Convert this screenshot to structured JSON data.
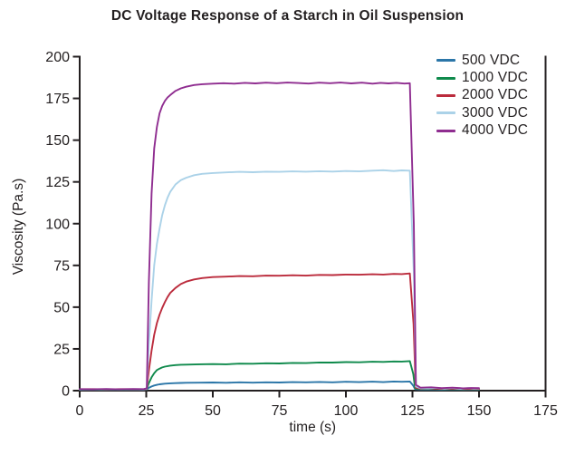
{
  "chart_data": {
    "type": "line",
    "title": "DC Voltage Response of a Starch in Oil Suspension",
    "xlabel": "time (s)",
    "ylabel": "Viscosity (Pa.s)",
    "xlim": [
      0,
      175
    ],
    "ylim": [
      0,
      200
    ],
    "xticks": [
      0,
      25,
      50,
      75,
      100,
      125,
      150,
      175
    ],
    "yticks": [
      0,
      25,
      50,
      75,
      100,
      125,
      150,
      175,
      200
    ],
    "grid": false,
    "legend_position": "upper-right-inside",
    "axis_color": "#231f20",
    "background_color": "#ffffff",
    "step_on_time_s": 25,
    "step_off_time_s": 125,
    "series": [
      {
        "name": "500 VDC",
        "color": "#2b76a8",
        "plateau_viscosity": 5,
        "points": [
          [
            0,
            0.6
          ],
          [
            4,
            0.7
          ],
          [
            8,
            0.5
          ],
          [
            12,
            0.7
          ],
          [
            16,
            0.6
          ],
          [
            20,
            0.7
          ],
          [
            24,
            0.6
          ],
          [
            25.2,
            0.7
          ],
          [
            26,
            1.7
          ],
          [
            27,
            2.5
          ],
          [
            28,
            3.1
          ],
          [
            29,
            3.5
          ],
          [
            30,
            3.8
          ],
          [
            32,
            4.2
          ],
          [
            34,
            4.4
          ],
          [
            36,
            4.5
          ],
          [
            38,
            4.6
          ],
          [
            40,
            4.7
          ],
          [
            45,
            4.8
          ],
          [
            50,
            4.9
          ],
          [
            55,
            4.7
          ],
          [
            60,
            5.0
          ],
          [
            65,
            4.8
          ],
          [
            70,
            5.0
          ],
          [
            75,
            4.9
          ],
          [
            80,
            5.1
          ],
          [
            85,
            5.0
          ],
          [
            90,
            5.2
          ],
          [
            95,
            5.0
          ],
          [
            100,
            5.3
          ],
          [
            105,
            5.1
          ],
          [
            110,
            5.4
          ],
          [
            114,
            5.1
          ],
          [
            118,
            5.5
          ],
          [
            121,
            5.3
          ],
          [
            124,
            5.5
          ],
          [
            125.3,
            3.0
          ],
          [
            126,
            0.9
          ],
          [
            128,
            0.7
          ],
          [
            132,
            0.8
          ],
          [
            136,
            0.6
          ],
          [
            140,
            0.8
          ],
          [
            144,
            0.6
          ],
          [
            147,
            0.7
          ],
          [
            150,
            0.6
          ]
        ]
      },
      {
        "name": "1000 VDC",
        "color": "#0f8a4c",
        "plateau_viscosity": 17,
        "points": [
          [
            0,
            0.7
          ],
          [
            4,
            0.8
          ],
          [
            8,
            0.6
          ],
          [
            12,
            0.8
          ],
          [
            16,
            0.6
          ],
          [
            20,
            0.8
          ],
          [
            24,
            0.7
          ],
          [
            25.2,
            0.9
          ],
          [
            26,
            4.5
          ],
          [
            27,
            8.0
          ],
          [
            28,
            10.5
          ],
          [
            29,
            12.3
          ],
          [
            30,
            13.2
          ],
          [
            31,
            13.9
          ],
          [
            32,
            14.4
          ],
          [
            34,
            15.0
          ],
          [
            36,
            15.3
          ],
          [
            38,
            15.5
          ],
          [
            40,
            15.6
          ],
          [
            45,
            15.8
          ],
          [
            50,
            15.9
          ],
          [
            55,
            15.8
          ],
          [
            60,
            16.2
          ],
          [
            65,
            16.1
          ],
          [
            70,
            16.4
          ],
          [
            75,
            16.3
          ],
          [
            80,
            16.6
          ],
          [
            85,
            16.5
          ],
          [
            90,
            16.9
          ],
          [
            95,
            16.8
          ],
          [
            100,
            17.1
          ],
          [
            105,
            17.0
          ],
          [
            110,
            17.3
          ],
          [
            114,
            17.2
          ],
          [
            118,
            17.5
          ],
          [
            121,
            17.4
          ],
          [
            124,
            17.7
          ],
          [
            125.3,
            10
          ],
          [
            126,
            1.3
          ],
          [
            128,
            1.0
          ],
          [
            132,
            1.1
          ],
          [
            136,
            0.9
          ],
          [
            140,
            1.0
          ],
          [
            144,
            0.8
          ],
          [
            147,
            0.9
          ],
          [
            150,
            0.8
          ]
        ]
      },
      {
        "name": "2000 VDC",
        "color": "#bb2b3c",
        "plateau_viscosity": 69,
        "points": [
          [
            0,
            0.8
          ],
          [
            5,
            0.9
          ],
          [
            10,
            0.7
          ],
          [
            15,
            0.9
          ],
          [
            20,
            0.8
          ],
          [
            24,
            0.8
          ],
          [
            25.2,
            1.0
          ],
          [
            26,
            12
          ],
          [
            27,
            24
          ],
          [
            28,
            33.5
          ],
          [
            29,
            40.5
          ],
          [
            30,
            45.5
          ],
          [
            31,
            49.5
          ],
          [
            32,
            53
          ],
          [
            33,
            56
          ],
          [
            34,
            58.5
          ],
          [
            36,
            61.5
          ],
          [
            38,
            63.8
          ],
          [
            40,
            65.3
          ],
          [
            43,
            66.6
          ],
          [
            46,
            67.4
          ],
          [
            50,
            68.0
          ],
          [
            55,
            68.3
          ],
          [
            60,
            68.6
          ],
          [
            65,
            68.5
          ],
          [
            70,
            68.9
          ],
          [
            75,
            68.8
          ],
          [
            80,
            69.1
          ],
          [
            85,
            68.9
          ],
          [
            90,
            69.3
          ],
          [
            95,
            69.2
          ],
          [
            100,
            69.5
          ],
          [
            105,
            69.4
          ],
          [
            110,
            69.7
          ],
          [
            114,
            69.5
          ],
          [
            118,
            69.9
          ],
          [
            121,
            69.8
          ],
          [
            124,
            70.2
          ],
          [
            125.4,
            40
          ],
          [
            126.2,
            1.8
          ],
          [
            128,
            1.2
          ],
          [
            132,
            1.3
          ],
          [
            136,
            1.1
          ],
          [
            140,
            1.2
          ],
          [
            144,
            1.0
          ],
          [
            147,
            1.1
          ],
          [
            150,
            1.0
          ]
        ]
      },
      {
        "name": "3000 VDC",
        "color": "#abd2e8",
        "plateau_viscosity": 131,
        "points": [
          [
            0,
            0.8
          ],
          [
            5,
            0.7
          ],
          [
            10,
            0.9
          ],
          [
            15,
            0.7
          ],
          [
            20,
            0.9
          ],
          [
            24,
            0.8
          ],
          [
            25.2,
            1.2
          ],
          [
            26,
            28
          ],
          [
            27,
            54
          ],
          [
            28,
            75
          ],
          [
            29,
            88
          ],
          [
            30,
            97
          ],
          [
            31,
            105
          ],
          [
            32,
            111
          ],
          [
            33,
            115.5
          ],
          [
            34,
            119
          ],
          [
            36,
            123.5
          ],
          [
            38,
            126
          ],
          [
            40,
            127.5
          ],
          [
            43,
            129.0
          ],
          [
            46,
            129.8
          ],
          [
            50,
            130.3
          ],
          [
            55,
            130.7
          ],
          [
            60,
            131.0
          ],
          [
            65,
            130.8
          ],
          [
            70,
            131.1
          ],
          [
            75,
            131.0
          ],
          [
            80,
            131.3
          ],
          [
            85,
            131.1
          ],
          [
            90,
            131.4
          ],
          [
            95,
            131.2
          ],
          [
            100,
            131.5
          ],
          [
            105,
            131.3
          ],
          [
            110,
            131.7
          ],
          [
            114,
            132.0
          ],
          [
            118,
            131.5
          ],
          [
            121,
            131.9
          ],
          [
            124,
            131.7
          ],
          [
            125.5,
            70
          ],
          [
            126.3,
            2.5
          ],
          [
            128,
            1.4
          ],
          [
            131,
            1.3
          ],
          [
            134,
            1.7
          ],
          [
            137,
            1.2
          ],
          [
            140,
            1.6
          ],
          [
            143,
            1.1
          ],
          [
            146,
            1.5
          ],
          [
            148,
            1.2
          ],
          [
            150,
            1.3
          ]
        ]
      },
      {
        "name": "4000 VDC",
        "color": "#8f2d90",
        "plateau_viscosity": 184,
        "points": [
          [
            0,
            0.9
          ],
          [
            5,
            0.8
          ],
          [
            10,
            1.0
          ],
          [
            15,
            0.8
          ],
          [
            20,
            1.0
          ],
          [
            24,
            0.9
          ],
          [
            25.2,
            1.4
          ],
          [
            26,
            65
          ],
          [
            27,
            118
          ],
          [
            28,
            145
          ],
          [
            29,
            158
          ],
          [
            30,
            166
          ],
          [
            31,
            170.5
          ],
          [
            32,
            173.5
          ],
          [
            33,
            175.5
          ],
          [
            34,
            177
          ],
          [
            36,
            179.5
          ],
          [
            38,
            181
          ],
          [
            40,
            182
          ],
          [
            43,
            183
          ],
          [
            46,
            183.5
          ],
          [
            50,
            183.8
          ],
          [
            54,
            184.1
          ],
          [
            58,
            183.8
          ],
          [
            62,
            184.3
          ],
          [
            66,
            184.0
          ],
          [
            70,
            184.4
          ],
          [
            74,
            184.1
          ],
          [
            78,
            184.5
          ],
          [
            82,
            184.2
          ],
          [
            86,
            183.9
          ],
          [
            90,
            184.4
          ],
          [
            94,
            184.1
          ],
          [
            98,
            184.5
          ],
          [
            102,
            184.0
          ],
          [
            106,
            184.4
          ],
          [
            110,
            183.8
          ],
          [
            113,
            184.3
          ],
          [
            116,
            184.0
          ],
          [
            119,
            184.3
          ],
          [
            122,
            183.9
          ],
          [
            124,
            184.1
          ],
          [
            125.5,
            100
          ],
          [
            126.3,
            3.5
          ],
          [
            128,
            1.8
          ],
          [
            132,
            2.0
          ],
          [
            136,
            1.5
          ],
          [
            140,
            1.8
          ],
          [
            144,
            1.4
          ],
          [
            147,
            1.6
          ],
          [
            150,
            1.5
          ]
        ]
      }
    ]
  }
}
